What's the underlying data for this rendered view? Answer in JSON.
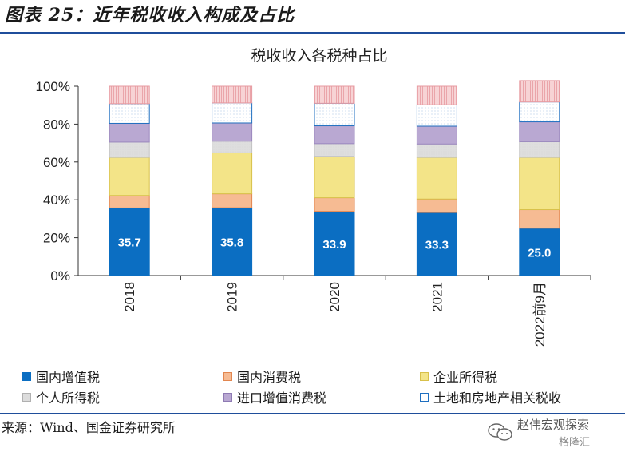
{
  "figure_title": "图表 25：近年税收收入构成及占比",
  "source_note": "来源：Wind、国金证券研究所",
  "watermark": {
    "account": "赵伟宏观探索",
    "platform": "格隆汇",
    "icon": "wechat-icon"
  },
  "colors": {
    "domestic_vat": "#0b6ec2",
    "consumption_tax": "#f6bb93",
    "corporate_income_tax": "#f3e488",
    "personal_income_tax": "#dcdcdc",
    "import_vat_consumption": "#b9a8d2",
    "land_property": "#ffffff",
    "other": "#f4c9cc",
    "accent_rule": "#1f4e9b"
  },
  "chart_data": {
    "type": "bar",
    "stacked": true,
    "title": "税收收入各税种占比",
    "xlabel": "",
    "ylabel": "",
    "ylim": [
      0,
      100
    ],
    "yticks": [
      "0%",
      "20%",
      "40%",
      "60%",
      "80%",
      "100%"
    ],
    "categories": [
      "2018",
      "2019",
      "2020",
      "2021",
      "2022前9月"
    ],
    "grid": false,
    "legend_position": "bottom",
    "series": [
      {
        "name": "国内增值税",
        "color": "#0b6ec2",
        "values": [
          35.7,
          35.8,
          33.9,
          33.3,
          25.0
        ],
        "data_labels": [
          "35.7",
          "35.8",
          "33.9",
          "33.3",
          "25.0"
        ]
      },
      {
        "name": "国内消费税",
        "color": "#f6bb93",
        "values": [
          6.6,
          7.4,
          7.2,
          7.1,
          9.8
        ]
      },
      {
        "name": "企业所得税",
        "color": "#f3e488",
        "values": [
          20.1,
          21.6,
          21.9,
          22.0,
          27.6
        ]
      },
      {
        "name": "个人所得税",
        "color": "#dcdcdc",
        "values": [
          8.1,
          6.2,
          6.7,
          7.1,
          8.3
        ]
      },
      {
        "name": "进口增值消费税",
        "color": "#b9a8d2",
        "values": [
          9.9,
          9.6,
          9.4,
          9.4,
          10.5
        ]
      },
      {
        "name": "土地和房地产相关税收",
        "color": "#ffffff",
        "values": [
          10.4,
          10.6,
          11.9,
          11.3,
          10.5
        ]
      },
      {
        "name": "",
        "color": "#f4c9cc",
        "values": [
          9.2,
          8.8,
          9.0,
          9.8,
          11.3
        ]
      }
    ]
  }
}
